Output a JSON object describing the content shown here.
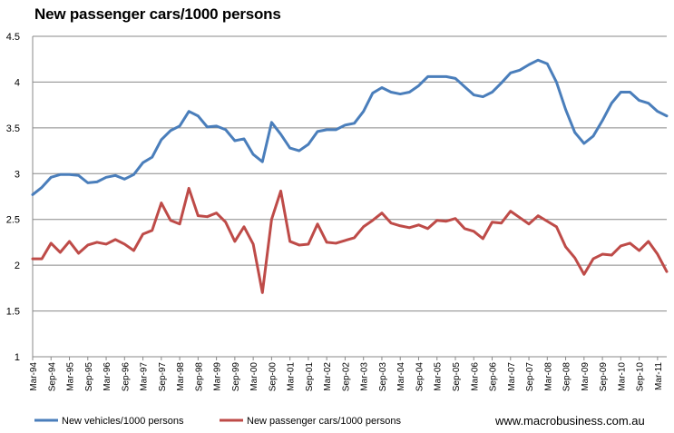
{
  "chart_data": {
    "type": "line",
    "title": "New passenger cars/1000 persons",
    "xlabel": "",
    "ylabel": "",
    "ylim": [
      1,
      4.5
    ],
    "yticks": [
      "1",
      "1.5",
      "2",
      "2.5",
      "3",
      "3.5",
      "4",
      "4.5"
    ],
    "ytick_values": [
      1,
      1.5,
      2,
      2.5,
      3,
      3.5,
      4,
      4.5
    ],
    "grid": true,
    "legend_position": "bottom",
    "x_tick_labels": [
      "Mar-94",
      "Sep-94",
      "Mar-95",
      "Sep-95",
      "Mar-96",
      "Sep-96",
      "Mar-97",
      "Sep-97",
      "Mar-98",
      "Sep-98",
      "Mar-99",
      "Sep-99",
      "Mar-00",
      "Sep-00",
      "Mar-01",
      "Sep-01",
      "Mar-02",
      "Sep-02",
      "Mar-03",
      "Sep-03",
      "Mar-04",
      "Sep-04",
      "Mar-05",
      "Sep-05",
      "Mar-06",
      "Sep-06",
      "Mar-07",
      "Sep-07",
      "Mar-08",
      "Sep-08",
      "Mar-09",
      "Sep-09",
      "Mar-10",
      "Sep-10",
      "Mar-11"
    ],
    "series": [
      {
        "name": "New vehicles/1000 persons",
        "color": "#4a7ebb",
        "values": [
          2.77,
          2.85,
          2.96,
          2.99,
          2.99,
          2.98,
          2.9,
          2.91,
          2.96,
          2.98,
          2.94,
          2.99,
          3.12,
          3.18,
          3.37,
          3.47,
          3.52,
          3.68,
          3.63,
          3.51,
          3.52,
          3.48,
          3.36,
          3.38,
          3.21,
          3.13,
          3.56,
          3.43,
          3.28,
          3.25,
          3.32,
          3.46,
          3.48,
          3.48,
          3.53,
          3.55,
          3.68,
          3.88,
          3.94,
          3.89,
          3.87,
          3.89,
          3.96,
          4.06,
          4.06,
          4.06,
          4.04,
          3.95,
          3.86,
          3.84,
          3.89,
          3.99,
          4.1,
          4.13,
          4.19,
          4.24,
          4.2,
          4.0,
          3.7,
          3.45,
          3.33,
          3.41,
          3.58,
          3.77,
          3.89,
          3.89,
          3.8,
          3.77,
          3.68,
          3.63
        ]
      },
      {
        "name": "New passenger cars/1000 persons",
        "color": "#be4b48",
        "values": [
          2.07,
          2.07,
          2.24,
          2.14,
          2.26,
          2.13,
          2.22,
          2.25,
          2.23,
          2.28,
          2.23,
          2.16,
          2.34,
          2.38,
          2.68,
          2.49,
          2.45,
          2.84,
          2.54,
          2.53,
          2.57,
          2.47,
          2.26,
          2.42,
          2.23,
          1.7,
          2.5,
          2.81,
          2.26,
          2.22,
          2.23,
          2.45,
          2.25,
          2.24,
          2.27,
          2.3,
          2.42,
          2.49,
          2.57,
          2.46,
          2.43,
          2.41,
          2.44,
          2.4,
          2.49,
          2.48,
          2.51,
          2.4,
          2.37,
          2.29,
          2.47,
          2.46,
          2.59,
          2.52,
          2.45,
          2.54,
          2.48,
          2.42,
          2.2,
          2.08,
          1.9,
          2.07,
          2.12,
          2.11,
          2.21,
          2.24,
          2.16,
          2.26,
          2.12,
          1.93
        ]
      }
    ],
    "source_text": "www.macrobusiness.com.au"
  }
}
